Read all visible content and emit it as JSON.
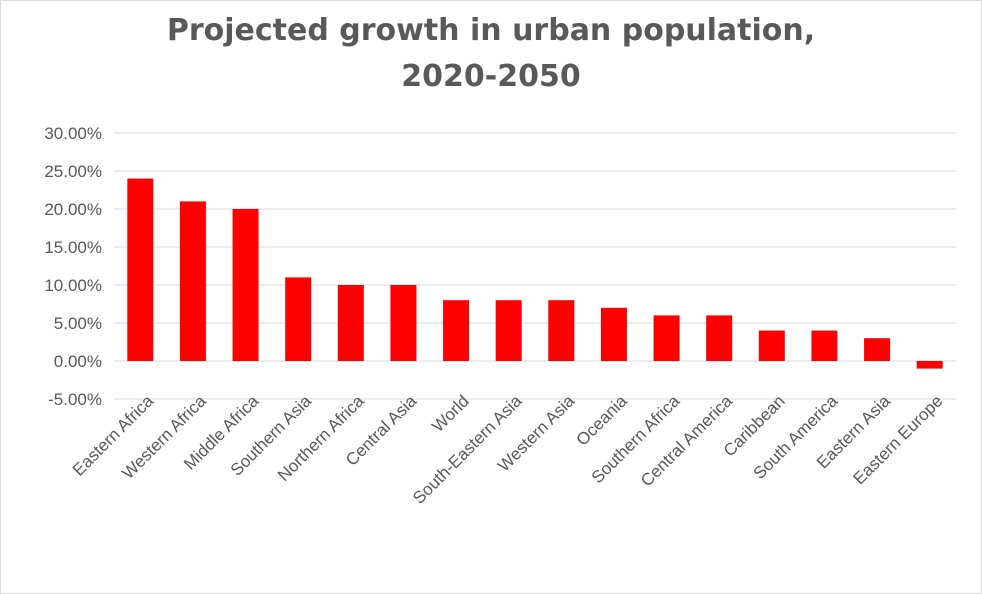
{
  "chart_data": {
    "type": "bar",
    "title_line1": "Projected growth in urban population,",
    "title_line2": "2020-2050",
    "categories": [
      "Eastern Africa",
      "Western Africa",
      "Middle Africa",
      "Southern Asia",
      "Northern Africa",
      "Central Asia",
      "World",
      "South-Eastern Asia",
      "Western Asia",
      "Oceania",
      "Southern Africa",
      "Central America",
      "Caribbean",
      "South America",
      "Eastern Asia",
      "Eastern Europe"
    ],
    "values": [
      24,
      21,
      20,
      11,
      10,
      10,
      8,
      8,
      8,
      7,
      6,
      6,
      4,
      4,
      3,
      -1
    ],
    "yticks": [
      30,
      25,
      20,
      15,
      10,
      5,
      0,
      -5
    ],
    "ytick_labels": [
      "30.00%",
      "25.00%",
      "20.00%",
      "15.00%",
      "10.00%",
      "5.00%",
      "0.00%",
      "-5.00%"
    ],
    "ylim": [
      -5,
      30
    ],
    "bar_color": "#ff0000",
    "grid_color": "#d9d9d9",
    "xlabel": "",
    "ylabel": ""
  }
}
